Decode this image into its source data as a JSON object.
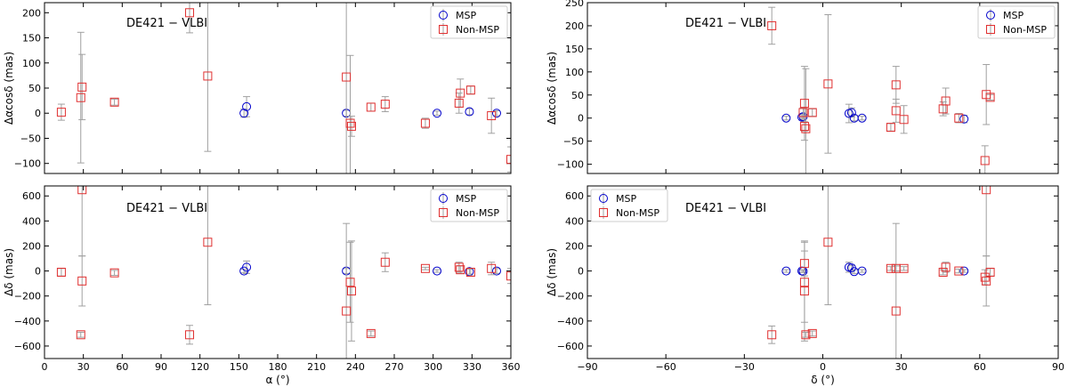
{
  "colors": {
    "msp": "#0000cc",
    "nonmsp": "#e03030",
    "errorbar": "#a0a0a0",
    "axis": "#000000"
  },
  "chart_data": [
    {
      "type": "scatter",
      "id": "ra_dra",
      "title": "DE421 − VLBI",
      "xlabel": "",
      "ylabel": "Δαcosδ (mas)",
      "xlim": [
        0,
        360
      ],
      "ylim": [
        -120,
        220
      ],
      "xticks": [
        0,
        30,
        60,
        90,
        120,
        150,
        180,
        210,
        240,
        270,
        300,
        330,
        360
      ],
      "xticklabels": [],
      "yticks": [
        -100,
        -50,
        0,
        50,
        100,
        150,
        200
      ],
      "legend": "top-right",
      "series": [
        {
          "name": "MSP",
          "marker": "circle",
          "points": [
            [
              154,
              0,
              8
            ],
            [
              156,
              13,
              20
            ],
            [
              233,
              0,
              6
            ],
            [
              303,
              0,
              4
            ],
            [
              328,
              3,
              6
            ],
            [
              349,
              0,
              5
            ]
          ]
        },
        {
          "name": "Non-MSP",
          "marker": "square",
          "points": [
            [
              13,
              2,
              16
            ],
            [
              28,
              31,
              130
            ],
            [
              29,
              52,
              65
            ],
            [
              54,
              22,
              6
            ],
            [
              112,
              200,
              40
            ],
            [
              126,
              74,
              150
            ],
            [
              233,
              72,
              230
            ],
            [
              236,
              -20,
              135
            ],
            [
              237,
              -26,
              20
            ],
            [
              252,
              12,
              8
            ],
            [
              263,
              18,
              15
            ],
            [
              294,
              -20,
              10
            ],
            [
              320,
              20,
              20
            ],
            [
              321,
              40,
              28
            ],
            [
              329,
              46,
              8
            ],
            [
              345,
              -5,
              35
            ],
            [
              360,
              -92,
              25
            ]
          ]
        }
      ]
    },
    {
      "type": "scatter",
      "id": "dec_dra",
      "title": "DE421 − VLBI",
      "xlabel": "",
      "ylabel": "Δαcosδ (mas)",
      "xlim": [
        -90,
        90
      ],
      "ylim": [
        -120,
        250
      ],
      "xticks": [
        -90,
        -60,
        -30,
        0,
        30,
        60,
        90
      ],
      "xticklabels": [],
      "yticks": [
        -100,
        -50,
        0,
        50,
        100,
        150,
        200,
        250
      ],
      "legend": "top-right",
      "series": [
        {
          "name": "MSP",
          "marker": "circle",
          "points": [
            [
              -14,
              0,
              4
            ],
            [
              -8,
              2,
              5
            ],
            [
              -7.5,
              3,
              5
            ],
            [
              10,
              10,
              20
            ],
            [
              11,
              12,
              10
            ],
            [
              12,
              0,
              6
            ],
            [
              15,
              0,
              4
            ],
            [
              54,
              -2,
              8
            ]
          ]
        },
        {
          "name": "Non-MSP",
          "marker": "square",
          "points": [
            [
              -19.5,
              200,
              40
            ],
            [
              -7,
              32,
              80
            ],
            [
              -7,
              -18,
              10
            ],
            [
              -6.5,
              -23,
              130
            ],
            [
              -7.5,
              12,
              10
            ],
            [
              -4,
              12,
              8
            ],
            [
              2,
              74,
              150
            ],
            [
              26,
              -20,
              8
            ],
            [
              28,
              72,
              40
            ],
            [
              28,
              16,
              25
            ],
            [
              31,
              -3,
              30
            ],
            [
              46,
              20,
              15
            ],
            [
              47,
              37,
              28
            ],
            [
              52,
              0,
              10
            ],
            [
              62,
              -92,
              32
            ],
            [
              62.5,
              51,
              65
            ],
            [
              64,
              45,
              6
            ]
          ]
        }
      ]
    },
    {
      "type": "scatter",
      "id": "ra_ddec",
      "title": "DE421 − VLBI",
      "xlabel": "α (°)",
      "ylabel": "Δδ (mas)",
      "xlim": [
        0,
        360
      ],
      "ylim": [
        -700,
        680
      ],
      "xticks": [
        0,
        30,
        60,
        90,
        120,
        150,
        180,
        210,
        240,
        270,
        300,
        330,
        360
      ],
      "xticklabels": [
        "0",
        "30",
        "60",
        "90",
        "120",
        "150",
        "180",
        "210",
        "240",
        "270",
        "300",
        "330",
        "360"
      ],
      "yticks": [
        -600,
        -400,
        -200,
        0,
        200,
        400,
        600
      ],
      "legend": "top-right",
      "series": [
        {
          "name": "MSP",
          "marker": "circle",
          "points": [
            [
              154,
              0,
              15
            ],
            [
              156,
              30,
              50
            ],
            [
              233,
              0,
              20
            ],
            [
              303,
              0,
              10
            ],
            [
              328,
              -5,
              20
            ],
            [
              349,
              0,
              20
            ]
          ]
        },
        {
          "name": "Non-MSP",
          "marker": "square",
          "points": [
            [
              13,
              -10,
              30
            ],
            [
              28,
              -510,
              20
            ],
            [
              29,
              -80,
              200
            ],
            [
              29,
              650,
              530
            ],
            [
              54,
              -15,
              20
            ],
            [
              112,
              -510,
              75
            ],
            [
              126,
              230,
              500
            ],
            [
              233,
              -320,
              700
            ],
            [
              236,
              -90,
              320
            ],
            [
              237,
              -160,
              400
            ],
            [
              252,
              -500,
              20
            ],
            [
              263,
              70,
              75
            ],
            [
              294,
              20,
              10
            ],
            [
              320,
              30,
              40
            ],
            [
              321,
              10,
              30
            ],
            [
              329,
              -10,
              30
            ],
            [
              345,
              20,
              50
            ],
            [
              360,
              -40,
              60
            ]
          ]
        }
      ]
    },
    {
      "type": "scatter",
      "id": "dec_ddec",
      "title": "DE421 − VLBI",
      "xlabel": "δ (°)",
      "ylabel": "Δδ (mas)",
      "xlim": [
        -90,
        90
      ],
      "ylim": [
        -700,
        680
      ],
      "xticks": [
        -90,
        -60,
        -30,
        0,
        30,
        60,
        90
      ],
      "xticklabels": [
        "−90",
        "−60",
        "−30",
        "0",
        "30",
        "60",
        "90"
      ],
      "yticks": [
        -600,
        -400,
        -200,
        0,
        200,
        400,
        600
      ],
      "legend": "top-left",
      "series": [
        {
          "name": "MSP",
          "marker": "circle",
          "points": [
            [
              -14,
              0,
              10
            ],
            [
              -8,
              0,
              10
            ],
            [
              -7.5,
              -2,
              10
            ],
            [
              10,
              30,
              40
            ],
            [
              11,
              25,
              20
            ],
            [
              12,
              -5,
              15
            ],
            [
              15,
              0,
              10
            ],
            [
              54,
              0,
              10
            ]
          ]
        },
        {
          "name": "Non-MSP",
          "marker": "square",
          "points": [
            [
              -19.5,
              -510,
              70
            ],
            [
              -7,
              60,
              100
            ],
            [
              -7,
              -90,
              320
            ],
            [
              -7,
              -160,
              400
            ],
            [
              -6.5,
              -510,
              20
            ],
            [
              -4,
              -500,
              20
            ],
            [
              2,
              230,
              500
            ],
            [
              26,
              20,
              15
            ],
            [
              28,
              -320,
              700
            ],
            [
              28,
              20,
              20
            ],
            [
              31,
              20,
              15
            ],
            [
              46,
              -10,
              20
            ],
            [
              47,
              30,
              40
            ],
            [
              52,
              0,
              15
            ],
            [
              62,
              -50,
              60
            ],
            [
              62.5,
              650,
              530
            ],
            [
              62.5,
              -80,
              200
            ],
            [
              64,
              -10,
              30
            ]
          ]
        }
      ]
    }
  ]
}
